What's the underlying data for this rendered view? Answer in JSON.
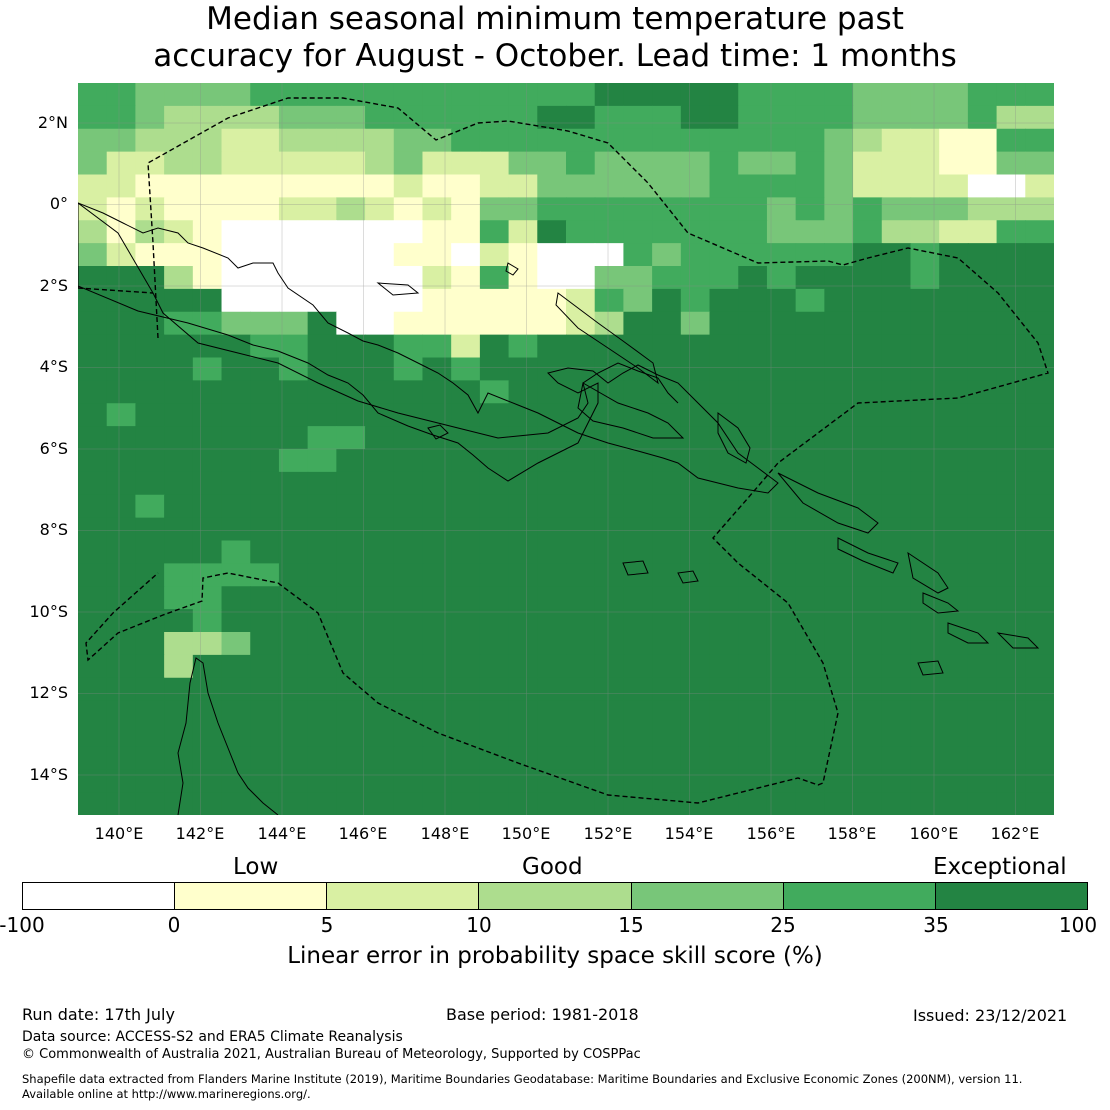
{
  "title": {
    "line1": "Median seasonal minimum temperature past",
    "line2": "accuracy for August - October. Lead time: 1 months"
  },
  "map": {
    "lat_labels": [
      "2°N",
      "0°",
      "2°S",
      "4°S",
      "6°S",
      "8°S",
      "10°S",
      "12°S",
      "14°S"
    ],
    "lon_labels": [
      "140°E",
      "142°E",
      "144°E",
      "146°E",
      "148°E",
      "150°E",
      "152°E",
      "154°E",
      "156°E",
      "158°E",
      "160°E",
      "162°E"
    ],
    "category_colors": [
      "#ffffff",
      "#ffffcc",
      "#d9f0a3",
      "#addd8e",
      "#78c679",
      "#41ab5d",
      "#238443"
    ],
    "coastline_color": "#000000",
    "eez_line_style": "dashed"
  },
  "legend": {
    "categories": [
      "Low",
      "Good",
      "Exceptional"
    ],
    "ticks": [
      "-100",
      "0",
      "5",
      "10",
      "15",
      "25",
      "35",
      "100"
    ],
    "label": "Linear error in probability space skill score (%)",
    "colors": [
      "#ffffff",
      "#ffffcc",
      "#d9f0a3",
      "#addd8e",
      "#78c679",
      "#41ab5d",
      "#238443"
    ]
  },
  "footer": {
    "run_date": "Run date: 17th July",
    "base_period": "Base period: 1981-2018",
    "issued": "Issued: 23/12/2021",
    "data_source": "Data source: ACCESS-S2 and ERA5 Climate Reanalysis",
    "copyright": "© Commonwealth of Australia 2021, Australian Bureau of Meteorology, Supported by COSPPac",
    "shapefile_1": "Shapefile data extracted from Flanders Marine Institute (2019), Maritime Boundaries Geodatabase: Maritime Boundaries and Exclusive Economic Zones (200NM), version 11.",
    "shapefile_2": "Available online at http://www.marineregions.org/."
  }
}
